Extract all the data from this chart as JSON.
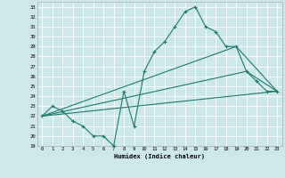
{
  "xlabel": "Humidex (Indice chaleur)",
  "bg_color": "#cce8e8",
  "line_color": "#1a7a6e",
  "grid_color": "#ffffff",
  "xlim": [
    -0.5,
    23.5
  ],
  "ylim": [
    19,
    33.5
  ],
  "yticks": [
    19,
    20,
    21,
    22,
    23,
    24,
    25,
    26,
    27,
    28,
    29,
    30,
    31,
    32,
    33
  ],
  "xticks": [
    0,
    1,
    2,
    3,
    4,
    5,
    6,
    7,
    8,
    9,
    10,
    11,
    12,
    13,
    14,
    15,
    16,
    17,
    18,
    19,
    20,
    21,
    22,
    23
  ],
  "line_main": {
    "x": [
      0,
      1,
      2,
      3,
      4,
      5,
      6,
      7,
      8,
      9,
      10,
      11,
      12,
      13,
      14,
      15,
      16,
      17,
      18,
      19,
      20,
      21,
      22,
      23
    ],
    "y": [
      22,
      23,
      22.5,
      21.5,
      21,
      20,
      20,
      19,
      24.5,
      21,
      26.5,
      28.5,
      29.5,
      31,
      32.5,
      33,
      31,
      30.5,
      29,
      29,
      26.5,
      25.5,
      24.5,
      24.5
    ]
  },
  "line_low": {
    "x": [
      0,
      23
    ],
    "y": [
      22,
      24.5
    ]
  },
  "line_mid": {
    "x": [
      0,
      20,
      23
    ],
    "y": [
      22,
      26.5,
      24.5
    ]
  },
  "line_high": {
    "x": [
      0,
      19,
      23
    ],
    "y": [
      22,
      29,
      24.5
    ]
  }
}
